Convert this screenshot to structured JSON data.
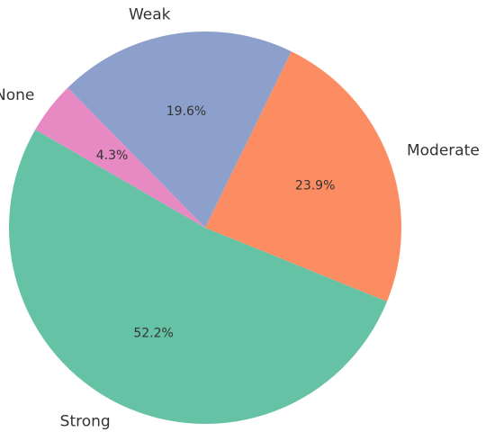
{
  "chart_data": {
    "type": "pie",
    "categories": [
      "Strong",
      "Moderate",
      "Weak",
      "None"
    ],
    "values": [
      52.2,
      23.9,
      19.6,
      4.3
    ],
    "value_labels": [
      "52.2%",
      "23.9%",
      "19.6%",
      "4.3%"
    ],
    "colors": [
      "#66c2a5",
      "#fc8d62",
      "#8da0cb",
      "#e78ac3"
    ],
    "start_angle_deg": 150,
    "direction": "counterclockwise",
    "legend": "none"
  }
}
